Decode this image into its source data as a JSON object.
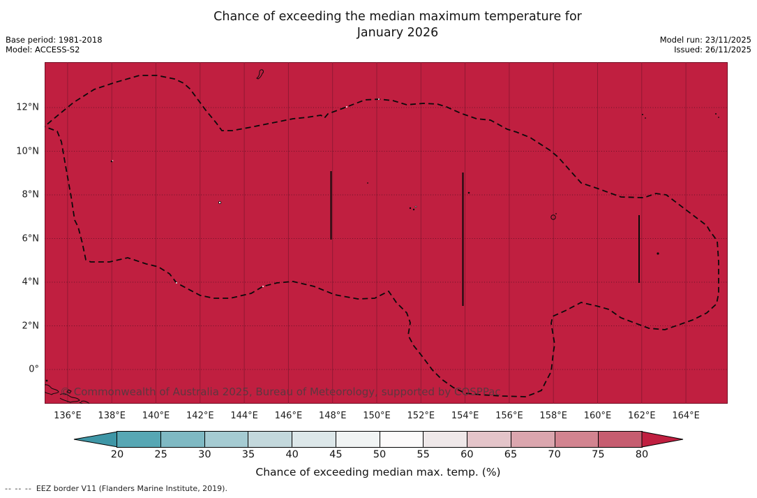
{
  "header": {
    "title_line1": "Chance of exceeding the median maximum temperature for",
    "title_line2": "January 2026",
    "base_period": "Base period: 1981-2018",
    "model": "Model: ACCESS-S2",
    "model_run": "Model run: 23/11/2025",
    "issued": "Issued: 26/11/2025"
  },
  "map": {
    "watermark": "© Commonwealth of Australia 2025, Bureau of Meteorology, supported by COSPPac",
    "fill_color": "#c01f40",
    "gridline_vertical_color": "#8d1832",
    "gridline_horizontal_color": "rgba(35,8,18,0.55)",
    "eez_border_color": "#0a0a0a",
    "y_tick_labels": [
      "12°N",
      "10°N",
      "8°N",
      "6°N",
      "4°N",
      "2°N",
      "0°"
    ],
    "x_tick_labels": [
      "136°E",
      "138°E",
      "140°E",
      "142°E",
      "144°E",
      "146°E",
      "148°E",
      "150°E",
      "152°E",
      "154°E",
      "156°E",
      "158°E",
      "160°E",
      "162°E",
      "164°E"
    ]
  },
  "colorbar": {
    "label": "Chance of exceeding median max. temp. (%)",
    "tick_labels": [
      "20",
      "25",
      "30",
      "35",
      "40",
      "45",
      "50",
      "55",
      "60",
      "65",
      "70",
      "75",
      "80"
    ],
    "under_arrow_color": "#3e96a6",
    "over_arrow_color": "#c01f40",
    "segment_colors": [
      "#57a7b4",
      "#7fb9c3",
      "#a5cbd2",
      "#c3d8dc",
      "#dce7e9",
      "#f1f4f4",
      "#fcfafa",
      "#efe8e9",
      "#e4c4c9",
      "#dba6ae",
      "#d28490",
      "#c65d70"
    ]
  },
  "footnote": {
    "dash_sample": "--  --  --",
    "text": "EEZ border V11 (Flanders Marine Institute, 2019)."
  },
  "chart_data": {
    "type": "heatmap",
    "title": "Chance of exceeding the median maximum temperature for January 2026",
    "base_period": "1981-2018",
    "model": "ACCESS-S2",
    "model_run": "23/11/2025",
    "issued": "26/11/2025",
    "x_axis": {
      "ticks": [
        "136°E",
        "138°E",
        "140°E",
        "142°E",
        "144°E",
        "146°E",
        "148°E",
        "150°E",
        "152°E",
        "154°E",
        "156°E",
        "158°E",
        "160°E",
        "162°E",
        "164°E"
      ],
      "range_deg_east": [
        135,
        166
      ]
    },
    "y_axis": {
      "ticks": [
        "0°",
        "2°N",
        "4°N",
        "6°N",
        "8°N",
        "10°N",
        "12°N"
      ],
      "range_deg_north": [
        -1.6,
        14.1
      ]
    },
    "colorbar": {
      "label": "Chance of exceeding median max. temp. (%)",
      "ticks": [
        20,
        25,
        30,
        35,
        40,
        45,
        50,
        55,
        60,
        65,
        70,
        75,
        80
      ],
      "open_ended_arrows": true,
      "low_color": "teal",
      "high_color": "red"
    },
    "values_summary": "The entire mapped EEZ region (Palau / Federated States of Micronesia area, ~135°E-166°E, ~1.5°S-14°N) is shaded in the highest class, i.e. chance of exceeding median maximum temperature > 80%.",
    "region_value_percent": ">80",
    "overlays": [
      "Dashed EEZ border V11 outline",
      "Solid vertical EEZ boundary segments near 148°E, 154°E and 162°E",
      "Small island coastlines (e.g. Guam, atolls, New Guinea coast at bottom left)"
    ],
    "grid": true,
    "legend_position": "horizontal colorbar below map"
  }
}
